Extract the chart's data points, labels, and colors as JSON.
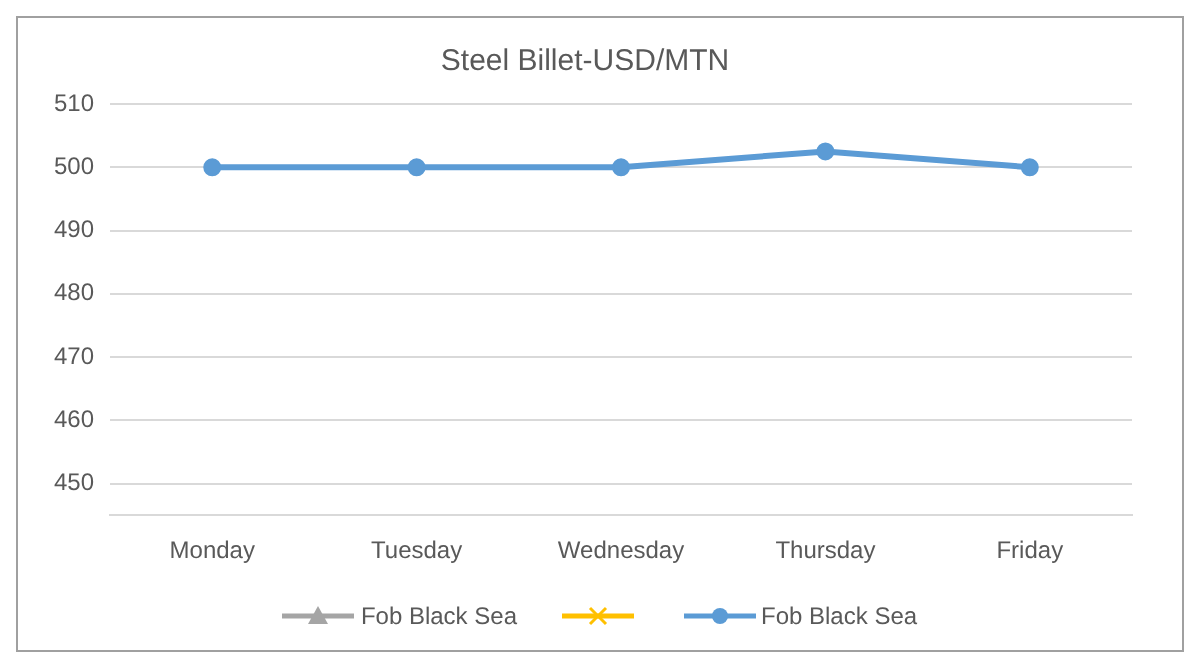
{
  "chart_data": {
    "type": "line",
    "title": "Steel Billet-USD/MTN",
    "categories": [
      "Monday",
      "Tuesday",
      "Wednesday",
      "Thursday",
      "Friday"
    ],
    "series": [
      {
        "name": "Fob Black Sea",
        "color": "#a5a5a5",
        "marker": "triangle",
        "values": [
          null,
          null,
          null,
          null,
          null
        ]
      },
      {
        "color": "#ffc000",
        "marker": "cross",
        "values": [
          null,
          null,
          null,
          null,
          null
        ]
      },
      {
        "name": "Fob Black Sea",
        "color": "#5b9bd5",
        "marker": "circle",
        "values": [
          500,
          500,
          500,
          502.5,
          500
        ]
      }
    ],
    "ylim": [
      445,
      510
    ],
    "yticks": [
      450,
      460,
      470,
      480,
      490,
      500,
      510
    ],
    "grid": "y",
    "legend": "bottom",
    "line_style": "solid"
  }
}
